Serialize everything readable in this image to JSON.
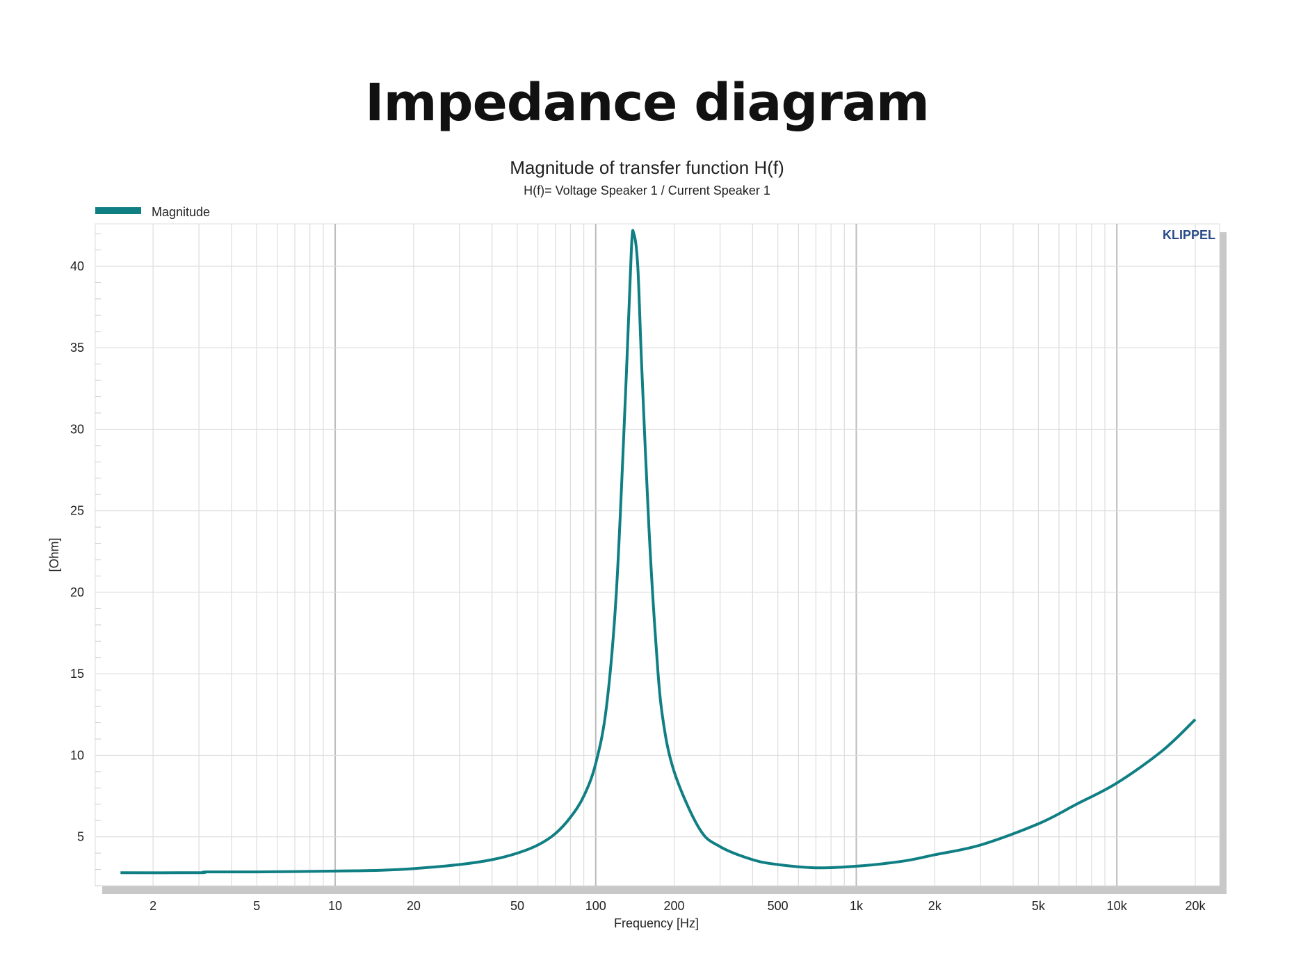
{
  "page_title": "Impedance diagram",
  "chart_data": {
    "type": "line",
    "title": "Magnitude of transfer function H(f)",
    "subtitle": "H(f)= Voltage Speaker 1 / Current Speaker 1",
    "xlabel": "Frequency [Hz]",
    "ylabel": "[Ohm]",
    "xscale": "log",
    "xlim": [
      1.2,
      24800
    ],
    "ylim": [
      2.0,
      42.6
    ],
    "grid": true,
    "legend_position": "top-left",
    "watermark": "KLIPPEL",
    "x_ticks": [
      {
        "v": 2,
        "label": "2"
      },
      {
        "v": 5,
        "label": "5"
      },
      {
        "v": 10,
        "label": "10"
      },
      {
        "v": 20,
        "label": "20"
      },
      {
        "v": 50,
        "label": "50"
      },
      {
        "v": 100,
        "label": "100"
      },
      {
        "v": 200,
        "label": "200"
      },
      {
        "v": 500,
        "label": "500"
      },
      {
        "v": 1000,
        "label": "1k"
      },
      {
        "v": 2000,
        "label": "2k"
      },
      {
        "v": 5000,
        "label": "5k"
      },
      {
        "v": 10000,
        "label": "10k"
      },
      {
        "v": 20000,
        "label": "20k"
      }
    ],
    "y_ticks": [
      {
        "v": 5,
        "label": "5"
      },
      {
        "v": 10,
        "label": "10"
      },
      {
        "v": 15,
        "label": "15"
      },
      {
        "v": 20,
        "label": "20"
      },
      {
        "v": 25,
        "label": "25"
      },
      {
        "v": 30,
        "label": "30"
      },
      {
        "v": 35,
        "label": "35"
      },
      {
        "v": 40,
        "label": "40"
      }
    ],
    "series": [
      {
        "name": "Magnitude",
        "color": "#107f84",
        "x": [
          1.5,
          3,
          3.2,
          5,
          10,
          15,
          20,
          30,
          40,
          50,
          60,
          70,
          80,
          90,
          100,
          110,
          120,
          130,
          137,
          140,
          145,
          150,
          160,
          170,
          180,
          200,
          250,
          300,
          400,
          500,
          700,
          1000,
          1500,
          2000,
          3000,
          5000,
          7000,
          10000,
          15000,
          20000
        ],
        "y": [
          2.8,
          2.8,
          2.85,
          2.85,
          2.9,
          2.95,
          3.05,
          3.3,
          3.6,
          4.0,
          4.5,
          5.2,
          6.2,
          7.5,
          9.5,
          13,
          20,
          32,
          41,
          42,
          40,
          34,
          24,
          17,
          12.5,
          9,
          5.5,
          4.4,
          3.6,
          3.3,
          3.1,
          3.2,
          3.5,
          3.9,
          4.5,
          5.8,
          7.0,
          8.3,
          10.3,
          12.2
        ]
      }
    ]
  }
}
